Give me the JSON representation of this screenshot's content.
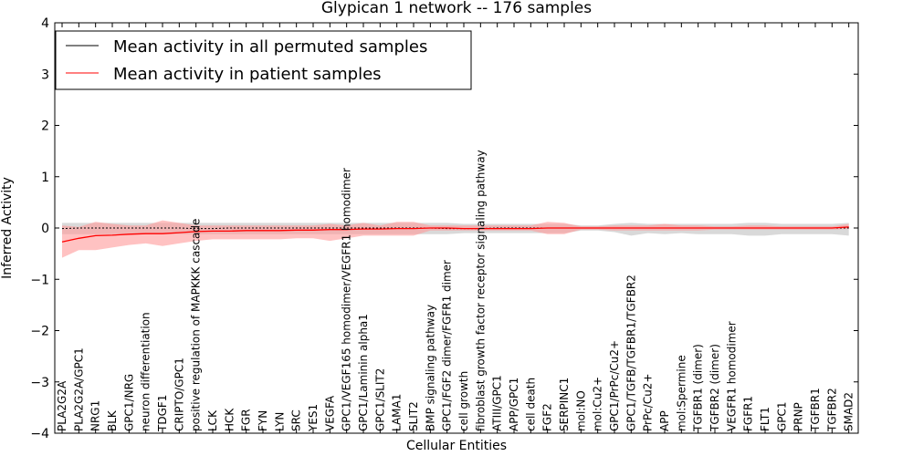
{
  "chart_data": {
    "type": "line",
    "title": "Glypican 1 network -- 176 samples",
    "xlabel": "Cellular Entities",
    "ylabel": "Inferred Activity",
    "ylim": [
      -4,
      4
    ],
    "yticks": [
      "−4",
      "−3",
      "−2",
      "−1",
      "0",
      "1",
      "2",
      "3",
      "4"
    ],
    "grid": false,
    "legend_position": "top-left",
    "categories": [
      "PLA2G2A",
      "PLA2G2A/GPC1",
      "NRG1",
      "BLK",
      "GPC1/NRG",
      "neuron differentiation",
      "TDGF1",
      "CRIPTO/GPC1",
      "positive regulation of MAPKKK cascade",
      "LCK",
      "HCK",
      "FGR",
      "FYN",
      "LYN",
      "SRC",
      "YES1",
      "VEGFA",
      "GPC1/VEGF165 homodimer/VEGFR1 homodimer",
      "GPC1/Laminin alpha1",
      "GPC1/SLIT2",
      "LAMA1",
      "SLIT2",
      "BMP signaling pathway",
      "GPC1/FGF2 dimer/FGFR1 dimer",
      "cell growth",
      "fibroblast growth factor receptor signaling pathway",
      "ATIII/GPC1",
      "APP/GPC1",
      "cell death",
      "FGF2",
      "SERPINC1",
      "mol:NO",
      "mol:Cu2+",
      "GPC1/PrPc/Cu2+",
      "GPC1/TGFB/TGFBR1/TGFBR2",
      "PrPc/Cu2+",
      "APP",
      "mol:Spermine",
      "TGFBR1 (dimer)",
      "TGFBR2 (dimer)",
      "VEGFR1 homodimer",
      "FGFR1",
      "FLT1",
      "GPC1",
      "PRNP",
      "TGFBR1",
      "TGFBR2",
      "SMAD2"
    ],
    "series": [
      {
        "name": "Mean activity in all permuted samples",
        "color": "#000000",
        "band_color": "#bfbfbf",
        "values": [
          -0.01,
          0,
          0,
          0,
          0,
          0,
          0,
          0,
          -0.01,
          -0.01,
          0,
          0,
          0,
          0,
          0,
          0,
          0,
          0,
          0,
          0,
          0,
          0,
          0,
          -0.01,
          -0.01,
          -0.01,
          0,
          0,
          0,
          0,
          0,
          0,
          0,
          0,
          0,
          0,
          0,
          0,
          0,
          0,
          0,
          0,
          0,
          0,
          0,
          0,
          0,
          0
        ],
        "band_lower": [
          -0.12,
          -0.12,
          -0.12,
          -0.12,
          -0.12,
          -0.12,
          -0.12,
          -0.12,
          -0.12,
          -0.12,
          -0.12,
          -0.12,
          -0.12,
          -0.12,
          -0.12,
          -0.12,
          -0.12,
          -0.12,
          -0.12,
          -0.12,
          -0.12,
          -0.12,
          -0.12,
          -0.12,
          -0.1,
          -0.1,
          -0.1,
          -0.1,
          -0.1,
          -0.1,
          -0.1,
          -0.05,
          -0.05,
          -0.08,
          -0.15,
          -0.1,
          -0.12,
          -0.1,
          -0.12,
          -0.12,
          -0.12,
          -0.15,
          -0.15,
          -0.12,
          -0.12,
          -0.12,
          -0.12,
          -0.15
        ],
        "band_upper": [
          0.1,
          0.1,
          0.1,
          0.1,
          0.1,
          0.1,
          0.1,
          0.1,
          0.1,
          0.1,
          0.1,
          0.1,
          0.1,
          0.1,
          0.1,
          0.1,
          0.1,
          0.1,
          0.1,
          0.1,
          0.1,
          0.1,
          0.1,
          0.1,
          0.08,
          0.08,
          0.08,
          0.08,
          0.08,
          0.08,
          0.08,
          0.05,
          0.05,
          0.08,
          0.1,
          0.08,
          0.08,
          0.08,
          0.08,
          0.08,
          0.08,
          0.1,
          0.1,
          0.08,
          0.08,
          0.08,
          0.08,
          0.1
        ]
      },
      {
        "name": "Mean activity in patient samples",
        "color": "#ff0000",
        "band_color": "#ff9999",
        "values": [
          -0.27,
          -0.2,
          -0.15,
          -0.14,
          -0.12,
          -0.11,
          -0.11,
          -0.09,
          -0.07,
          -0.06,
          -0.06,
          -0.05,
          -0.05,
          -0.05,
          -0.04,
          -0.04,
          -0.03,
          -0.03,
          -0.02,
          -0.02,
          -0.01,
          -0.01,
          0,
          0,
          -0.01,
          -0.01,
          -0.01,
          -0.01,
          -0.01,
          0,
          0,
          0,
          0,
          0,
          0,
          0,
          0,
          0,
          0,
          0,
          0,
          0,
          0,
          0,
          0,
          0,
          0,
          0.02
        ],
        "band_lower": [
          -0.58,
          -0.43,
          -0.43,
          -0.38,
          -0.33,
          -0.3,
          -0.35,
          -0.3,
          -0.25,
          -0.22,
          -0.22,
          -0.22,
          -0.22,
          -0.22,
          -0.2,
          -0.2,
          -0.25,
          -0.2,
          -0.15,
          -0.15,
          -0.15,
          -0.15,
          -0.05,
          -0.05,
          -0.05,
          -0.05,
          -0.05,
          -0.05,
          -0.05,
          -0.12,
          -0.12,
          -0.03,
          -0.03,
          -0.05,
          -0.05,
          -0.05,
          -0.05,
          -0.05,
          -0.05,
          -0.03,
          -0.03,
          -0.03,
          -0.03,
          -0.03,
          -0.03,
          -0.03,
          -0.03,
          -0.02
        ],
        "band_upper": [
          0.05,
          0.02,
          0.12,
          0.08,
          0.05,
          0.05,
          0.15,
          0.1,
          0.05,
          0.05,
          0.05,
          0.05,
          0.05,
          0.05,
          0.05,
          0.05,
          0.08,
          0.05,
          0.1,
          0.05,
          0.12,
          0.12,
          0.05,
          0.05,
          0.05,
          0.05,
          0.05,
          0.05,
          0.05,
          0.12,
          0.1,
          0.03,
          0.03,
          0.05,
          0.05,
          0.05,
          0.08,
          0.05,
          0.05,
          0.03,
          0.03,
          0.05,
          0.05,
          0.03,
          0.03,
          0.03,
          0.03,
          0.08
        ]
      }
    ]
  }
}
